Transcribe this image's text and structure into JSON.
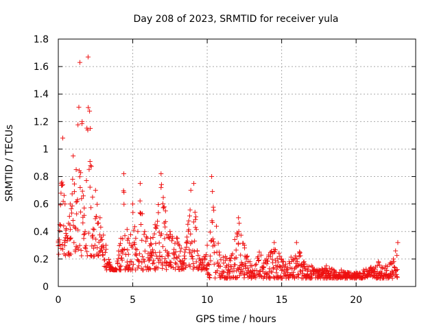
{
  "chart_data": {
    "type": "scatter",
    "title": "Day 208 of 2023, SRMTID for receiver yula",
    "xlabel": "GPS time / hours",
    "ylabel": "SRMTID / TECUs",
    "xlim": [
      0,
      24
    ],
    "ylim": [
      0,
      1.8
    ],
    "grid": true,
    "marker": "plus",
    "series_color": "#ee1111",
    "x_ticks": [
      0,
      5,
      10,
      15,
      20
    ],
    "x_tick_labels": [
      "0",
      "5",
      "10",
      "15",
      "20"
    ],
    "y_ticks": [
      0,
      0.2,
      0.4,
      0.6,
      0.8,
      1.0,
      1.2,
      1.4,
      1.6,
      1.8
    ],
    "y_tick_labels": [
      "0",
      "0.2",
      "0.4",
      "0.6",
      "0.8",
      "1",
      "1.2",
      "1.4",
      "1.6",
      "1.8"
    ],
    "envelope_points": [
      {
        "x": 0.0,
        "y": 0.33
      },
      {
        "x": 0.1,
        "y": 0.45
      },
      {
        "x": 0.2,
        "y": 0.75
      },
      {
        "x": 0.3,
        "y": 1.08
      },
      {
        "x": 0.45,
        "y": 0.6
      },
      {
        "x": 0.6,
        "y": 0.35
      },
      {
        "x": 0.8,
        "y": 0.6
      },
      {
        "x": 1.0,
        "y": 0.95
      },
      {
        "x": 1.2,
        "y": 0.85
      },
      {
        "x": 1.45,
        "y": 1.63
      },
      {
        "x": 1.6,
        "y": 1.2
      },
      {
        "x": 1.8,
        "y": 0.4
      },
      {
        "x": 2.0,
        "y": 1.67
      },
      {
        "x": 2.15,
        "y": 1.15
      },
      {
        "x": 2.3,
        "y": 0.65
      },
      {
        "x": 2.5,
        "y": 0.7
      },
      {
        "x": 2.8,
        "y": 0.5
      },
      {
        "x": 3.2,
        "y": 0.3
      },
      {
        "x": 3.5,
        "y": 0.15
      },
      {
        "x": 3.8,
        "y": 0.12
      },
      {
        "x": 4.2,
        "y": 0.35
      },
      {
        "x": 4.4,
        "y": 0.82
      },
      {
        "x": 4.7,
        "y": 0.35
      },
      {
        "x": 5.0,
        "y": 0.6
      },
      {
        "x": 5.2,
        "y": 0.35
      },
      {
        "x": 5.5,
        "y": 0.75
      },
      {
        "x": 5.8,
        "y": 0.4
      },
      {
        "x": 6.2,
        "y": 0.35
      },
      {
        "x": 6.5,
        "y": 0.45
      },
      {
        "x": 6.9,
        "y": 0.82
      },
      {
        "x": 7.2,
        "y": 0.55
      },
      {
        "x": 7.5,
        "y": 0.4
      },
      {
        "x": 8.0,
        "y": 0.35
      },
      {
        "x": 8.5,
        "y": 0.25
      },
      {
        "x": 8.9,
        "y": 0.7
      },
      {
        "x": 9.1,
        "y": 0.75
      },
      {
        "x": 9.5,
        "y": 0.2
      },
      {
        "x": 10.0,
        "y": 0.3
      },
      {
        "x": 10.3,
        "y": 0.8
      },
      {
        "x": 10.8,
        "y": 0.25
      },
      {
        "x": 11.5,
        "y": 0.2
      },
      {
        "x": 12.1,
        "y": 0.5
      },
      {
        "x": 12.5,
        "y": 0.3
      },
      {
        "x": 13.0,
        "y": 0.15
      },
      {
        "x": 13.5,
        "y": 0.25
      },
      {
        "x": 14.0,
        "y": 0.2
      },
      {
        "x": 14.5,
        "y": 0.32
      },
      {
        "x": 15.0,
        "y": 0.2
      },
      {
        "x": 15.5,
        "y": 0.18
      },
      {
        "x": 16.0,
        "y": 0.32
      },
      {
        "x": 16.5,
        "y": 0.18
      },
      {
        "x": 17.0,
        "y": 0.15
      },
      {
        "x": 17.5,
        "y": 0.12
      },
      {
        "x": 18.0,
        "y": 0.15
      },
      {
        "x": 18.5,
        "y": 0.12
      },
      {
        "x": 19.0,
        "y": 0.12
      },
      {
        "x": 19.5,
        "y": 0.1
      },
      {
        "x": 20.0,
        "y": 0.1
      },
      {
        "x": 20.5,
        "y": 0.12
      },
      {
        "x": 21.0,
        "y": 0.14
      },
      {
        "x": 21.5,
        "y": 0.18
      },
      {
        "x": 22.0,
        "y": 0.15
      },
      {
        "x": 22.5,
        "y": 0.2
      },
      {
        "x": 22.8,
        "y": 0.32
      }
    ]
  }
}
